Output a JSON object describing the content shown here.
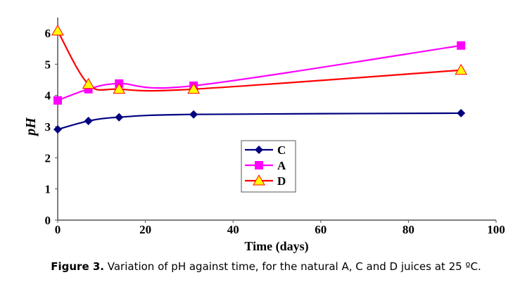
{
  "chart_data": {
    "type": "line",
    "title": "",
    "xlabel": "Time (days)",
    "ylabel": "pH",
    "xlim": [
      0,
      100
    ],
    "ylim": [
      0,
      6.5
    ],
    "xticks": [
      0,
      20,
      40,
      60,
      80,
      100
    ],
    "yticks": [
      0,
      1,
      2,
      3,
      4,
      5,
      6
    ],
    "grid": false,
    "legend_position": "center",
    "x": [
      0,
      7,
      14,
      31,
      92
    ],
    "series": [
      {
        "name": "C",
        "color": "#000080",
        "marker": "diamond",
        "values": [
          2.91,
          3.18,
          3.3,
          3.39,
          3.43
        ]
      },
      {
        "name": "A",
        "color": "#FF00FF",
        "marker": "square",
        "values": [
          3.84,
          4.2,
          4.38,
          4.31,
          5.6
        ]
      },
      {
        "name": "D",
        "color": "#FF0000",
        "marker": "triangle",
        "marker_fill": "#FFFF00",
        "values": [
          6.07,
          4.36,
          4.2,
          4.2,
          4.81
        ]
      }
    ]
  },
  "caption": {
    "label": "Figure 3.",
    "text": " Variation of pH against time, for the natural A, C and D juices at 25 ºC."
  }
}
